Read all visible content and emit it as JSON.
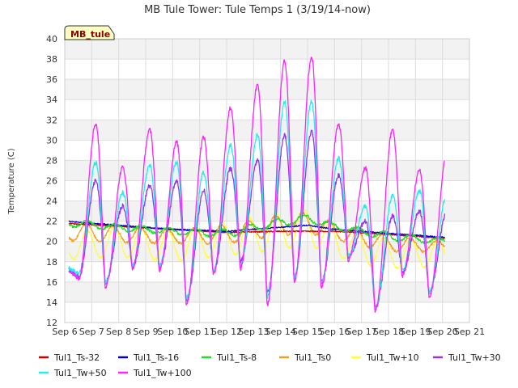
{
  "chart_data": {
    "type": "line",
    "title": "MB Tule Tower: Tule Temps 1 (3/19/14-now)",
    "ylabel": "Temperature (C)",
    "xlabel": "",
    "badge": "MB_tule",
    "ylim": [
      12,
      40
    ],
    "xlim": [
      6,
      21
    ],
    "yticks": [
      "12",
      "14",
      "16",
      "18",
      "20",
      "22",
      "24",
      "26",
      "28",
      "30",
      "32",
      "34",
      "36",
      "38",
      "40"
    ],
    "xticks": [
      {
        "label": "Sep 6",
        "v": 6
      },
      {
        "label": "Sep 7",
        "v": 7
      },
      {
        "label": "Sep 8",
        "v": 8
      },
      {
        "label": "Sep 9",
        "v": 9
      },
      {
        "label": "Sep 10",
        "v": 10
      },
      {
        "label": "Sep 11",
        "v": 11
      },
      {
        "label": "Sep 12",
        "v": 12
      },
      {
        "label": "Sep 13",
        "v": 13
      },
      {
        "label": "Sep 14",
        "v": 14
      },
      {
        "label": "Sep 15",
        "v": 15
      },
      {
        "label": "Sep 16",
        "v": 16
      },
      {
        "label": "Sep 17",
        "v": 17
      },
      {
        "label": "Sep 18",
        "v": 18
      },
      {
        "label": "Sep 19",
        "v": 19
      },
      {
        "label": "Sep 20",
        "v": 20
      },
      {
        "label": "Sep 21",
        "v": 21
      }
    ],
    "grid": true,
    "legend_position": "bottom",
    "days": [
      6.5,
      7.5,
      8.5,
      9.5,
      10.5,
      11.5,
      12.5,
      13.5,
      14.5,
      15.5,
      16.5,
      17.5,
      18.5,
      19.5,
      20.5
    ],
    "series": [
      {
        "name": "Tul1_Ts-32",
        "color": "#cc0000",
        "style": "flat",
        "x": [
          6,
          8,
          10,
          12,
          14,
          16,
          18,
          20.1
        ],
        "y": [
          21.8,
          21.5,
          21.2,
          20.9,
          21.0,
          21.0,
          20.7,
          20.3
        ]
      },
      {
        "name": "Tul1_Ts-16",
        "color": "#0000cc",
        "style": "flat",
        "x": [
          6,
          8,
          10,
          12,
          14,
          15,
          16,
          18,
          20.1
        ],
        "y": [
          22.0,
          21.6,
          21.2,
          21.0,
          21.4,
          21.6,
          21.2,
          20.8,
          20.4
        ]
      },
      {
        "name": "Tul1_Ts-8",
        "color": "#22dd22",
        "style": "wave",
        "x": [
          6,
          8,
          10,
          12,
          14,
          15,
          16,
          18,
          20.1
        ],
        "y": [
          21.9,
          21.4,
          21.0,
          20.8,
          21.9,
          22.3,
          21.5,
          20.5,
          20.0
        ],
        "amp": [
          0.4,
          0.3,
          0.3,
          0.4,
          0.4,
          0.4,
          0.3,
          0.4,
          0.3
        ],
        "phase": 0.6
      },
      {
        "name": "Tul1_Ts0",
        "color": "#f0a020",
        "style": "wave",
        "x": [
          6,
          8,
          10,
          12,
          14,
          15,
          16,
          18,
          20.1
        ],
        "y": [
          21.0,
          20.7,
          20.5,
          20.7,
          21.6,
          21.9,
          21.0,
          19.8,
          19.5
        ],
        "amp": [
          0.9,
          0.8,
          0.7,
          0.9,
          1.0,
          1.0,
          0.8,
          0.8,
          0.5
        ],
        "phase": 0.55
      },
      {
        "name": "Tul1_Tw+10",
        "color": "#ffff33",
        "style": "wave",
        "x": [
          6,
          8,
          10,
          12,
          14,
          15,
          16,
          18,
          20.1
        ],
        "y": [
          19.5,
          20.0,
          19.5,
          20.3,
          21.0,
          21.5,
          20.0,
          18.8,
          18.8
        ],
        "amp": [
          1.3,
          1.5,
          1.5,
          1.7,
          1.8,
          1.8,
          1.5,
          1.5,
          1.2
        ],
        "phase": 0.58
      },
      {
        "name": "Tul1_Tw+30",
        "color": "#9933ee",
        "style": "daily",
        "base": 17.3,
        "peaks": [
          26.0,
          23.5,
          25.5,
          26.0,
          25.0,
          27.2,
          28.0,
          30.5,
          30.8,
          26.5,
          22.0,
          22.5,
          23.0,
          22.8
        ],
        "mins": [
          16.5,
          16.0,
          17.5,
          17.5,
          14.2,
          17.0,
          18.0,
          15.0,
          16.5,
          16.0,
          18.5,
          13.5,
          17.0,
          15.0,
          16.0
        ]
      },
      {
        "name": "Tul1_Tw+50",
        "color": "#22eeee",
        "style": "daily",
        "peaks": [
          27.8,
          24.8,
          27.5,
          27.8,
          26.8,
          29.5,
          30.5,
          33.8,
          33.8,
          28.2,
          23.5,
          24.5,
          25.0,
          24.5
        ],
        "mins": [
          16.8,
          16.1,
          17.6,
          17.6,
          14.4,
          17.1,
          17.6,
          14.6,
          16.4,
          15.9,
          18.6,
          13.4,
          17.1,
          15.0,
          16.1
        ]
      },
      {
        "name": "Tul1_Tw+100",
        "color": "#ff22ff",
        "style": "daily",
        "peaks": [
          31.6,
          27.3,
          31.0,
          29.8,
          30.3,
          33.2,
          35.4,
          37.8,
          38.2,
          31.6,
          27.3,
          31.0,
          27.0,
          28.3
        ],
        "mins": [
          16.3,
          15.5,
          17.3,
          17.1,
          13.9,
          16.8,
          17.3,
          13.8,
          16.0,
          15.5,
          18.2,
          13.1,
          16.6,
          14.5,
          15.7
        ]
      }
    ]
  }
}
